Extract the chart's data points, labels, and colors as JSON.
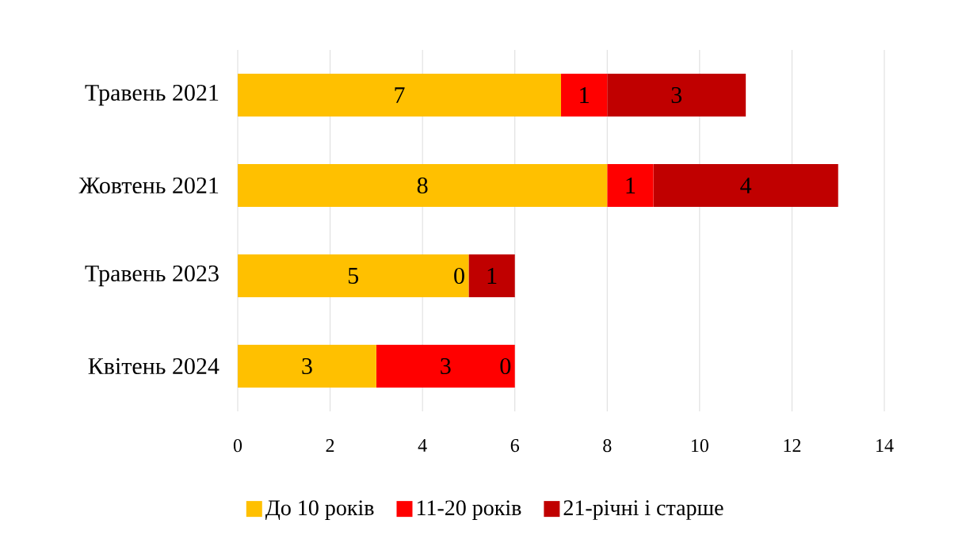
{
  "chart_data": {
    "type": "bar",
    "orientation": "horizontal",
    "stacked": true,
    "data_labels": true,
    "categories": [
      "Травень 2021",
      "Жовтень 2021",
      "Травень 2023",
      "Квітень 2024"
    ],
    "series": [
      {
        "name": "До 10 років",
        "color": "#ffc000",
        "values": [
          7,
          8,
          5,
          3
        ]
      },
      {
        "name": "11-20 років",
        "color": "#ff0000",
        "values": [
          1,
          1,
          0,
          3
        ]
      },
      {
        "name": "21-річні і старше",
        "color": "#c00000",
        "values": [
          3,
          4,
          1,
          0
        ]
      }
    ],
    "xlim": [
      0,
      14
    ],
    "xticks": [
      0,
      2,
      4,
      6,
      8,
      10,
      12,
      14
    ],
    "grid": "x",
    "legend": "bottom"
  }
}
